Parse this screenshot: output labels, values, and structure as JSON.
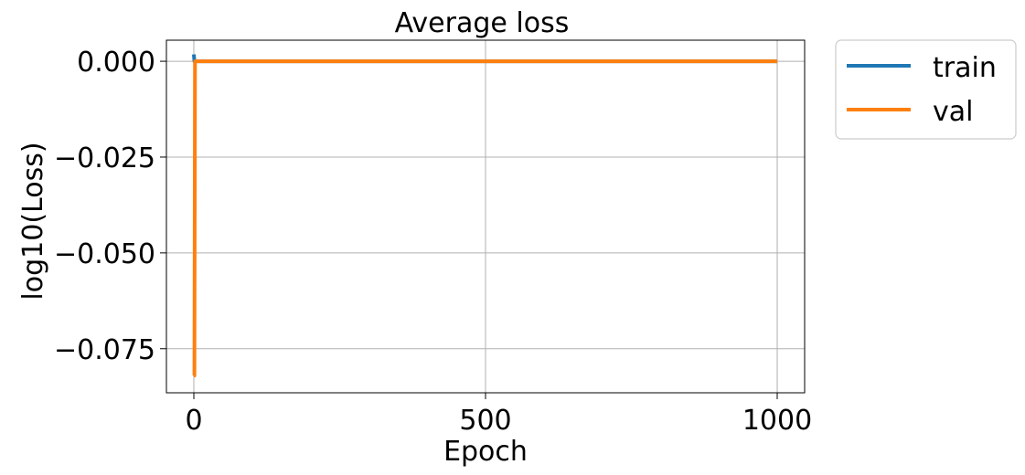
{
  "chart_data": {
    "type": "line",
    "title": "Average loss",
    "xlabel": "Epoch",
    "ylabel": "log10(Loss)",
    "xlim": [
      -47,
      1047
    ],
    "ylim": [
      -0.0865,
      0.0055
    ],
    "xticks": [
      0,
      500,
      1000
    ],
    "xtick_labels": [
      "0",
      "500",
      "1000"
    ],
    "yticks": [
      0.0,
      -0.025,
      -0.05,
      -0.075
    ],
    "ytick_labels": [
      "0.000",
      "−0.025",
      "−0.050",
      "−0.075"
    ],
    "grid": true,
    "legend_position": "outside-top-right",
    "series": [
      {
        "name": "train",
        "color": "#1f77b4",
        "x": [
          0,
          1,
          2,
          5,
          10,
          50,
          100,
          200,
          300,
          400,
          500,
          600,
          700,
          800,
          900,
          1000
        ],
        "y": [
          0.0018,
          0.0,
          0.0,
          0.0,
          0.0,
          0.0,
          0.0,
          0.0,
          0.0,
          0.0,
          0.0,
          0.0,
          0.0,
          0.0,
          0.0,
          0.0
        ]
      },
      {
        "name": "val",
        "color": "#ff7f0e",
        "x": [
          0,
          1,
          2,
          5,
          10,
          50,
          100,
          200,
          300,
          400,
          500,
          600,
          700,
          800,
          900,
          1000
        ],
        "y": [
          -0.082,
          -0.082,
          0.0,
          0.0,
          0.0,
          0.0,
          0.0,
          0.0,
          0.0,
          0.0,
          0.0,
          0.0,
          0.0,
          0.0,
          0.0,
          0.0
        ]
      }
    ]
  }
}
